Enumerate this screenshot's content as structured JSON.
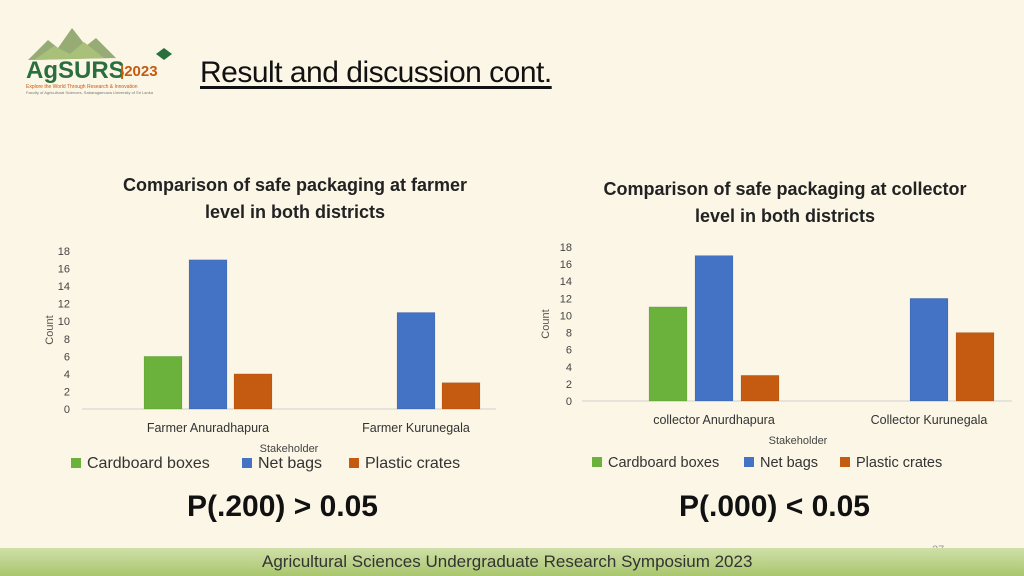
{
  "logo": {
    "name": "AgSURS",
    "year": "2023",
    "tagline": "Explore the World Through Research & Innovation",
    "subline": "Faculty of Agricultural Sciences, Sabaragamuwa University of Sri Lanka"
  },
  "slide": {
    "title": "Result and discussion cont.",
    "page_number": "27",
    "footer": "Agricultural Sciences Undergraduate Research Symposium 2023"
  },
  "colors": {
    "Cardboard boxes": "#6bb23d",
    "Net bags": "#4472c4",
    "Plastic crates": "#c55a11"
  },
  "chart_data": [
    {
      "type": "bar",
      "title": "Comparison of safe packaging at farmer level in both districts",
      "title_lines": [
        "Comparison of safe packaging at farmer",
        "level in both districts"
      ],
      "xlabel": "Stakeholder",
      "ylabel": "Count",
      "ylim": [
        0,
        18
      ],
      "yticks": [
        0,
        2,
        4,
        6,
        8,
        10,
        12,
        14,
        16,
        18
      ],
      "categories": [
        "Farmer Anuradhapura",
        "Farmer Kurunegala"
      ],
      "series": [
        {
          "name": "Cardboard boxes",
          "values": [
            6,
            0
          ]
        },
        {
          "name": "Net bags",
          "values": [
            17,
            11
          ]
        },
        {
          "name": "Plastic crates",
          "values": [
            4,
            3
          ]
        }
      ],
      "legend": "bottom",
      "grid": false,
      "annotation": "P(.200) > 0.05"
    },
    {
      "type": "bar",
      "title": "Comparison of safe packaging at collector level in both districts",
      "title_lines": [
        "Comparison of safe packaging at collector",
        "level in both districts"
      ],
      "xlabel": "Stakeholder",
      "ylabel": "Count",
      "ylim": [
        0,
        18
      ],
      "yticks": [
        0,
        2,
        4,
        6,
        8,
        10,
        12,
        14,
        16,
        18
      ],
      "categories": [
        "collector Anurdhapura",
        "Collector Kurunegala"
      ],
      "series": [
        {
          "name": "Cardboard boxes",
          "values": [
            11,
            0
          ]
        },
        {
          "name": "Net bags",
          "values": [
            17,
            12
          ]
        },
        {
          "name": "Plastic crates",
          "values": [
            3,
            8
          ]
        }
      ],
      "legend": "bottom",
      "grid": false,
      "annotation": "P(.000) < 0.05"
    }
  ]
}
